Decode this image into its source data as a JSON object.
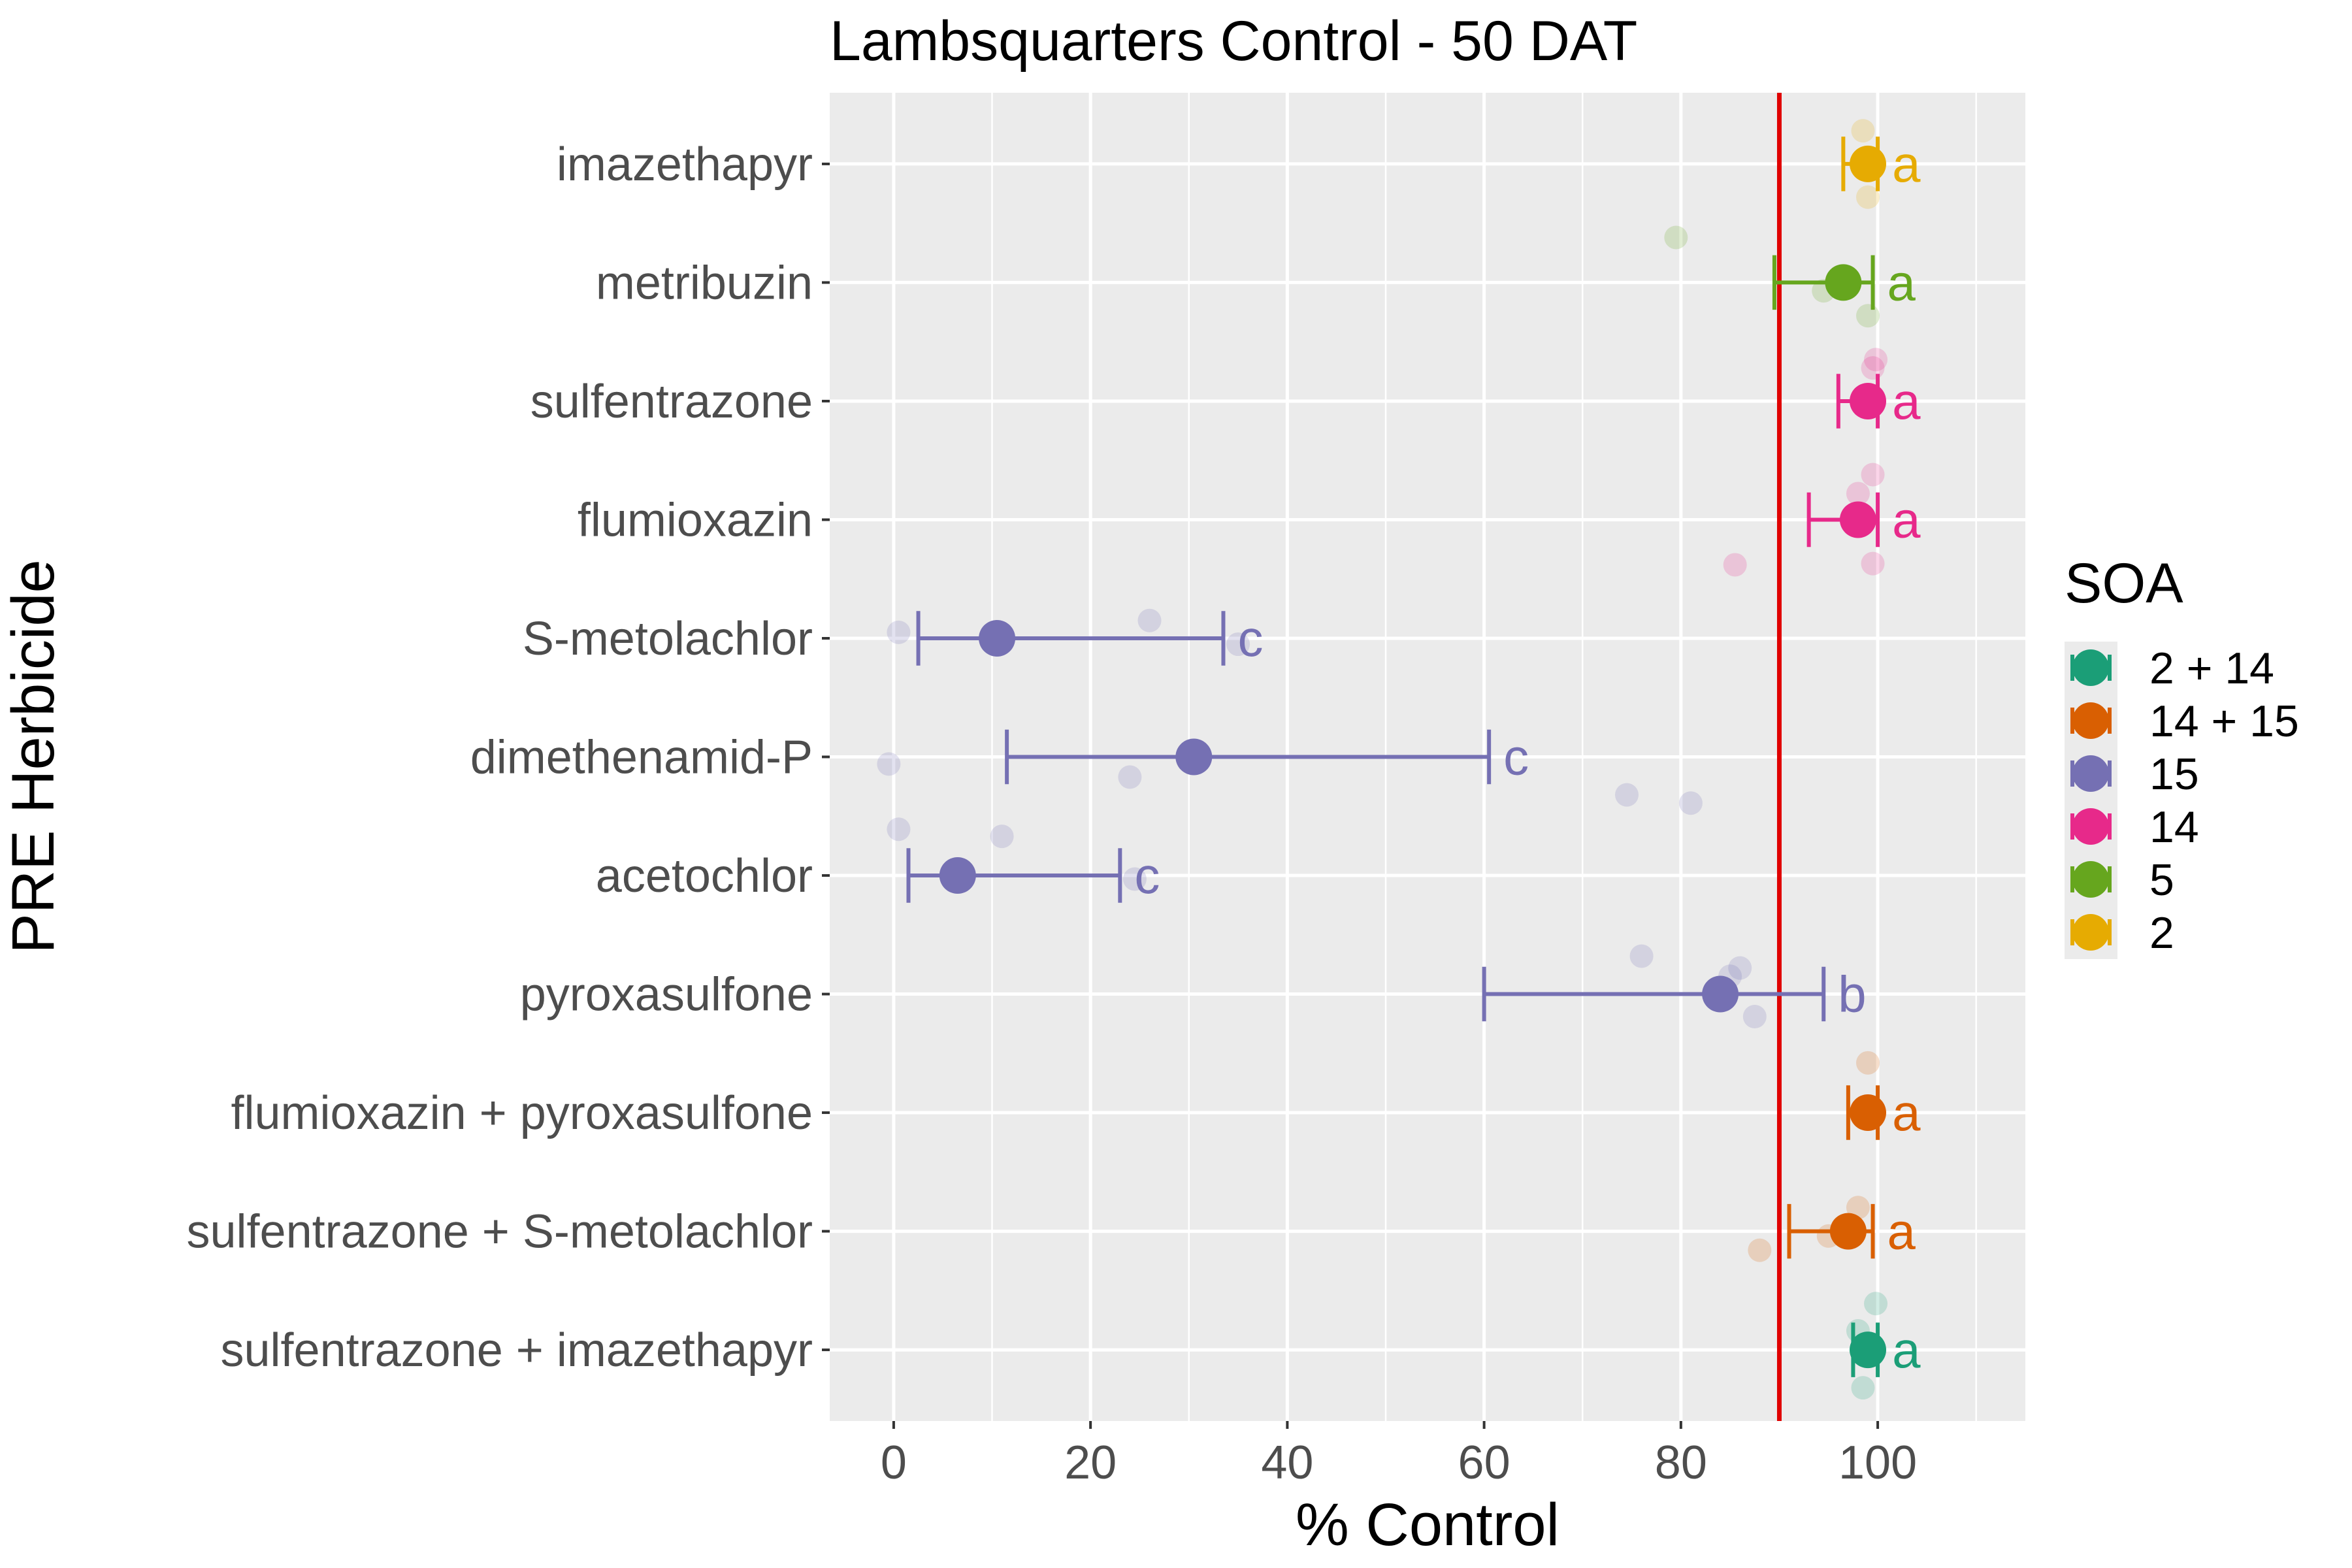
{
  "chart_data": {
    "type": "scatter",
    "title": "Lambsquarters Control - 50 DAT",
    "xlabel": "% Control",
    "ylabel": "PRE Herbicide",
    "xlim": [
      -6.5,
      115
    ],
    "xticks": [
      0,
      20,
      40,
      60,
      80,
      100
    ],
    "reference_line": {
      "x": 90,
      "color": "#e00000"
    },
    "grid": true,
    "legend": {
      "title": "SOA",
      "position": "right",
      "entries": [
        {
          "label": "2 + 14",
          "color": "#1b9e77"
        },
        {
          "label": "14 + 15",
          "color": "#d95f02"
        },
        {
          "label": "15",
          "color": "#7570b3"
        },
        {
          "label": "14",
          "color": "#e7298a"
        },
        {
          "label": "5",
          "color": "#66a61e"
        },
        {
          "label": "2",
          "color": "#e6ab02"
        }
      ]
    },
    "categories": [
      "imazethapyr",
      "metribuzin",
      "sulfentrazone",
      "flumioxazin",
      "S-metolachlor",
      "dimethenamid-P",
      "acetochlor",
      "pyroxasulfone",
      "flumioxazin + pyroxasulfone",
      "sulfentrazone + S-metolachlor",
      "sulfentrazone + imazethapyr"
    ],
    "series": [
      {
        "herbicide": "imazethapyr",
        "soa": "2",
        "color": "#e6ab02",
        "mean": 99,
        "ci": [
          96.5,
          100
        ],
        "letter": "a",
        "raw": [
          [
            98.5,
            0.28
          ],
          [
            99,
            -0.28
          ]
        ]
      },
      {
        "herbicide": "metribuzin",
        "soa": "5",
        "color": "#66a61e",
        "mean": 96.5,
        "ci": [
          89.5,
          99.5
        ],
        "letter": "a",
        "raw": [
          [
            79.5,
            0.38
          ],
          [
            94.5,
            -0.07
          ],
          [
            99,
            -0.28
          ]
        ]
      },
      {
        "herbicide": "sulfentrazone",
        "soa": "14",
        "color": "#e7298a",
        "mean": 99,
        "ci": [
          96,
          100
        ],
        "letter": "a",
        "raw": [
          [
            99.8,
            0.35
          ],
          [
            99.5,
            0.28
          ]
        ]
      },
      {
        "herbicide": "flumioxazin",
        "soa": "14",
        "color": "#e7298a",
        "mean": 98,
        "ci": [
          93,
          100
        ],
        "letter": "a",
        "raw": [
          [
            99.5,
            0.38
          ],
          [
            98,
            0.22
          ],
          [
            85.5,
            -0.38
          ],
          [
            99.5,
            -0.37
          ]
        ]
      },
      {
        "herbicide": "S-metolachlor",
        "soa": "15",
        "color": "#7570b3",
        "mean": 10.5,
        "ci": [
          2.5,
          33.5
        ],
        "letter": "c",
        "raw": [
          [
            26,
            0.15
          ],
          [
            0.5,
            0.05
          ],
          [
            35,
            -0.05
          ]
        ]
      },
      {
        "herbicide": "dimethenamid-P",
        "soa": "15",
        "color": "#7570b3",
        "mean": 30.5,
        "ci": [
          11.5,
          60.5
        ],
        "letter": "c",
        "raw": [
          [
            -0.5,
            -0.06
          ],
          [
            24,
            -0.17
          ],
          [
            74.5,
            -0.32
          ],
          [
            81,
            -0.39
          ]
        ]
      },
      {
        "herbicide": "acetochlor",
        "soa": "15",
        "color": "#7570b3",
        "mean": 6.5,
        "ci": [
          1.5,
          23
        ],
        "letter": "c",
        "raw": [
          [
            0.5,
            0.39
          ],
          [
            11,
            0.33
          ],
          [
            24.5,
            -0.03
          ]
        ]
      },
      {
        "herbicide": "pyroxasulfone",
        "soa": "15",
        "color": "#7570b3",
        "mean": 84,
        "ci": [
          60,
          94.5
        ],
        "letter": "b",
        "raw": [
          [
            76,
            0.32
          ],
          [
            86,
            0.22
          ],
          [
            85,
            0.15
          ],
          [
            87.5,
            -0.19
          ]
        ]
      },
      {
        "herbicide": "flumioxazin + pyroxasulfone",
        "soa": "14 + 15",
        "color": "#d95f02",
        "mean": 99,
        "ci": [
          97,
          100
        ],
        "letter": "a",
        "raw": [
          [
            99,
            0.42
          ],
          [
            98.5,
            0
          ]
        ]
      },
      {
        "herbicide": "sulfentrazone + S-metolachlor",
        "soa": "14 + 15",
        "color": "#d95f02",
        "mean": 97,
        "ci": [
          91,
          99.5
        ],
        "letter": "a",
        "raw": [
          [
            98,
            0.2
          ],
          [
            95,
            -0.04
          ],
          [
            88,
            -0.16
          ]
        ]
      },
      {
        "herbicide": "sulfentrazone + imazethapyr",
        "soa": "2 + 14",
        "color": "#1b9e77",
        "mean": 99,
        "ci": [
          97.5,
          100
        ],
        "letter": "a",
        "raw": [
          [
            99.8,
            0.39
          ],
          [
            98,
            0.16
          ],
          [
            98.5,
            -0.32
          ]
        ]
      }
    ]
  }
}
